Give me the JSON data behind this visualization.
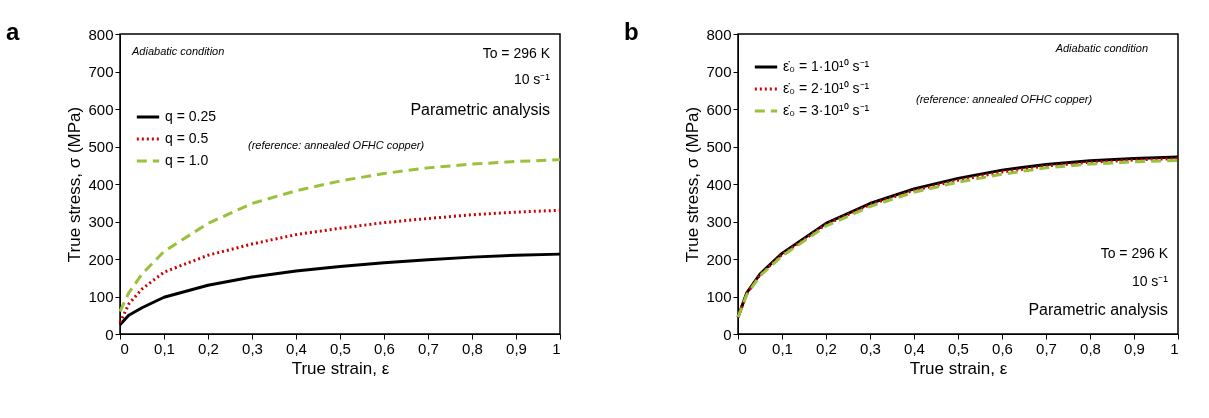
{
  "chart_data": [
    {
      "type": "line",
      "title": "a",
      "xlabel": "True strain, ε",
      "ylabel": "True stress, σ (MPa)",
      "x": [
        0,
        0.02,
        0.05,
        0.1,
        0.2,
        0.3,
        0.4,
        0.5,
        0.6,
        0.7,
        0.8,
        0.9,
        1
      ],
      "xlim": [
        0,
        1
      ],
      "xticks": [
        0,
        {
          "value": 0.1,
          "label": "0,1"
        },
        {
          "value": 0.2,
          "label": "0,2"
        },
        {
          "value": 0.3,
          "label": "0,3"
        },
        {
          "value": 0.4,
          "label": "0,4"
        },
        {
          "value": 0.5,
          "label": "0,5"
        },
        {
          "value": 0.6,
          "label": "0,6"
        },
        {
          "value": 0.7,
          "label": "0,7"
        },
        {
          "value": 0.8,
          "label": "0,8"
        },
        {
          "value": 0.9,
          "label": "0,9"
        },
        1
      ],
      "ylim": [
        0,
        800
      ],
      "yticks": [
        0,
        100,
        200,
        300,
        400,
        500,
        600,
        700,
        800
      ],
      "grid": false,
      "legend": "left",
      "series": [
        {
          "name": "q = 0.25",
          "color": "#000000",
          "line_style": "solid",
          "values": [
            25,
            50,
            70,
            98,
            130,
            152,
            168,
            180,
            190,
            198,
            205,
            210,
            213
          ]
        },
        {
          "name": "q = 0.5",
          "color": "#cc0000",
          "line_style": "dotted",
          "values": [
            30,
            80,
            120,
            165,
            210,
            240,
            265,
            282,
            297,
            308,
            318,
            325,
            330
          ]
        },
        {
          "name": "q = 1.0",
          "color": "#99c23c",
          "line_style": "dashed",
          "values": [
            60,
            110,
            160,
            220,
            295,
            348,
            382,
            408,
            428,
            443,
            453,
            460,
            465
          ]
        }
      ],
      "annotations": [
        "Adiabatic condition",
        "To = 296 K",
        "10 s⁻¹",
        "Parametric analysis",
        "(reference: annealed OFHC copper)"
      ]
    },
    {
      "type": "line",
      "title": "b",
      "xlabel": "True strain, ε",
      "ylabel": "True stress, σ (MPa)",
      "x": [
        0,
        0.02,
        0.05,
        0.1,
        0.2,
        0.3,
        0.4,
        0.5,
        0.6,
        0.7,
        0.8,
        0.9,
        1
      ],
      "xlim": [
        0,
        1
      ],
      "xticks": [
        0,
        {
          "value": 0.1,
          "label": "0,1"
        },
        {
          "value": 0.2,
          "label": "0,2"
        },
        {
          "value": 0.3,
          "label": "0,3"
        },
        {
          "value": 0.4,
          "label": "0,4"
        },
        {
          "value": 0.5,
          "label": "0,5"
        },
        {
          "value": 0.6,
          "label": "0,6"
        },
        {
          "value": 0.7,
          "label": "0,7"
        },
        {
          "value": 0.8,
          "label": "0,8"
        },
        {
          "value": 0.9,
          "label": "0,9"
        },
        1
      ],
      "ylim": [
        0,
        800
      ],
      "yticks": [
        0,
        100,
        200,
        300,
        400,
        500,
        600,
        700,
        800
      ],
      "grid": false,
      "legend": "top left",
      "series": [
        {
          "name": "ε̇₀ = 1·10¹⁰ s⁻¹",
          "color": "#000000",
          "line_style": "solid",
          "values": [
            45,
            110,
            160,
            215,
            295,
            348,
            387,
            415,
            437,
            452,
            462,
            468,
            472
          ]
        },
        {
          "name": "ε̇₀ = 2·10¹⁰ s⁻¹",
          "color": "#cc0000",
          "line_style": "dotted",
          "values": [
            45,
            108,
            158,
            212,
            292,
            345,
            383,
            410,
            432,
            448,
            458,
            464,
            468
          ]
        },
        {
          "name": "ε̇₀ = 3·10¹⁰ s⁻¹",
          "color": "#99c23c",
          "line_style": "dashed",
          "values": [
            45,
            105,
            155,
            208,
            288,
            340,
            378,
            405,
            426,
            443,
            453,
            459,
            463
          ]
        }
      ],
      "annotations": [
        "Adiabatic condition",
        "To = 296 K",
        "10 s⁻¹",
        "Parametric analysis",
        "(reference: annealed OFHC copper)"
      ]
    }
  ]
}
